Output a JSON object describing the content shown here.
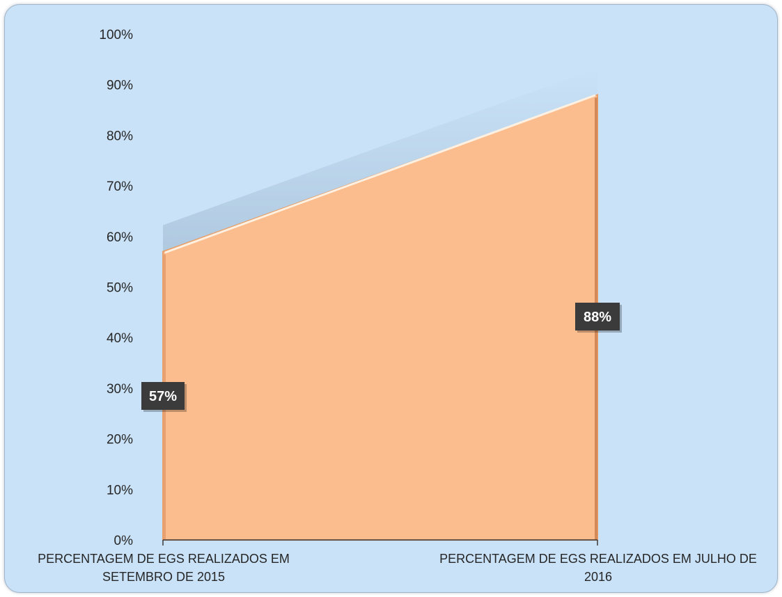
{
  "chart_data": {
    "type": "area",
    "title": "",
    "xlabel": "",
    "ylabel": "",
    "ylim": [
      0,
      100
    ],
    "y_ticks": [
      "0%",
      "10%",
      "20%",
      "30%",
      "40%",
      "50%",
      "60%",
      "70%",
      "80%",
      "90%",
      "100%"
    ],
    "categories": [
      [
        "PERCENTAGEM DE EGS REALIZADOS EM",
        "SETEMBRO DE 2015"
      ],
      [
        "PERCENTAGEM DE EGS REALIZADOS EM JULHO DE",
        "2016"
      ]
    ],
    "values": [
      57,
      88
    ],
    "data_labels": [
      "57%",
      "88%"
    ],
    "grid": false,
    "legend": "none",
    "colors": {
      "area_fill": "#fcbd8e",
      "area_edge": "#e8a06a",
      "plot_background": "#c9e2f8",
      "label_box": "#3b3b3b"
    }
  }
}
